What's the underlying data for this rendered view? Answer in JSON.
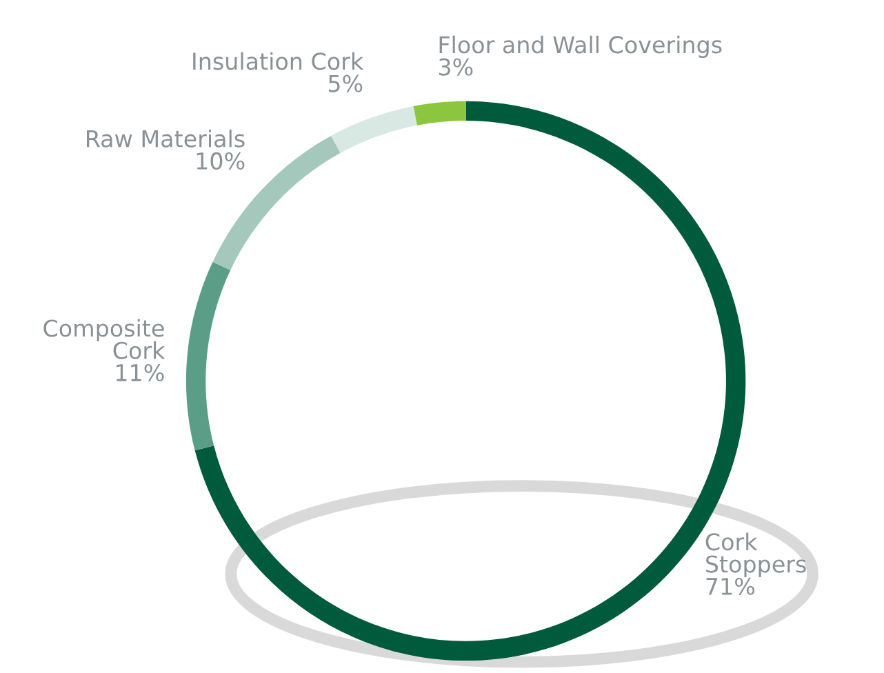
{
  "chart_data": {
    "type": "donut",
    "categories": [
      "Cork\nStoppers",
      "Composite\nCork",
      "Raw Materials",
      "Insulation Cork",
      "Floor and Wall Coverings"
    ],
    "values": [
      71,
      11,
      10,
      5,
      3
    ],
    "colors": [
      "#005a3c",
      "#5a9e88",
      "#a4c9bc",
      "#d8e9e3",
      "#8cc63f"
    ],
    "value_labels": [
      "71%",
      "11%",
      "10%",
      "5%",
      "3%"
    ]
  }
}
